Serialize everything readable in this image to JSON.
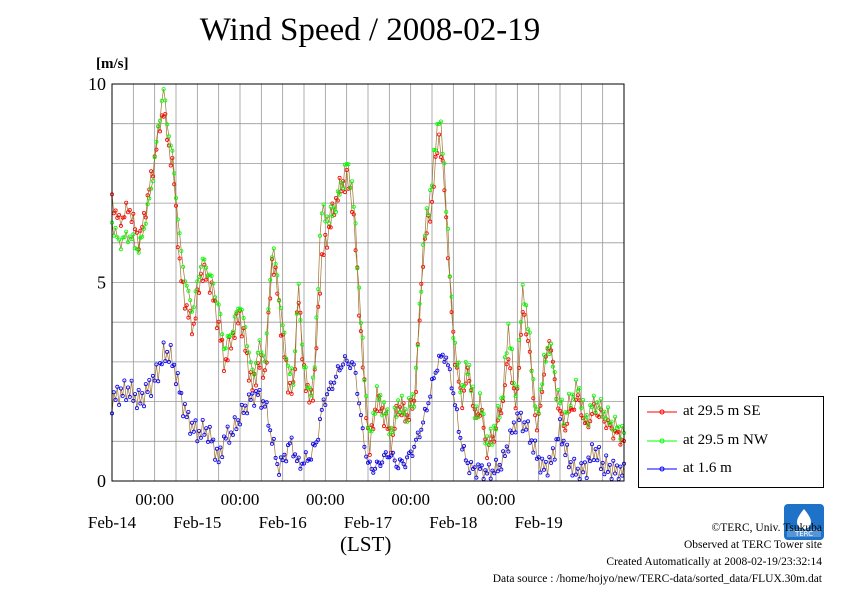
{
  "title": "Wind Speed / 2008-02-19",
  "unit_label": "[m/s]",
  "xunit_label": "(LST)",
  "credits": {
    "line1": "©TERC, Univ. Tsukuba",
    "line2": "Observed at TERC Tower site",
    "line3": "Created Automatically at 2008-02-19/23:32:14",
    "line4": "Data source : /home/hojyo/new/TERC-data/sorted_data/FLUX.30m.dat"
  },
  "logo_text": "TERC",
  "colors": {
    "se": "#ff0000",
    "nw": "#00ff00",
    "low": "#0000ff",
    "line": "#a07030",
    "grid": "#999999"
  },
  "chart_data": {
    "type": "line",
    "x_tick_labels": [
      "00:00",
      "00:00",
      "00:00",
      "00:00",
      "00:00"
    ],
    "date_labels": [
      "Feb-14",
      "Feb-15",
      "Feb-16",
      "Feb-17",
      "Feb-18",
      "Feb-19"
    ],
    "xlim_days": [
      13.5,
      19.5
    ],
    "ylim": [
      0,
      10
    ],
    "y_ticks": [
      0,
      5,
      10
    ],
    "y_minor_step": 1,
    "grid": true,
    "legend_position": "lower-right-outside",
    "series": [
      {
        "name": "at 29.5 m SE",
        "color": "#ff0000",
        "keypoints": [
          [
            13.5,
            7.1
          ],
          [
            13.58,
            6.5
          ],
          [
            13.7,
            6.9
          ],
          [
            13.82,
            6.0
          ],
          [
            13.95,
            7.5
          ],
          [
            14.05,
            8.8
          ],
          [
            14.1,
            9.4
          ],
          [
            14.15,
            8.6
          ],
          [
            14.22,
            7.8
          ],
          [
            14.3,
            5.2
          ],
          [
            14.38,
            4.3
          ],
          [
            14.45,
            3.8
          ],
          [
            14.55,
            5.3
          ],
          [
            14.65,
            5.0
          ],
          [
            14.75,
            3.9
          ],
          [
            14.82,
            2.9
          ],
          [
            14.92,
            3.7
          ],
          [
            15.0,
            4.2
          ],
          [
            15.08,
            3.1
          ],
          [
            15.15,
            2.3
          ],
          [
            15.22,
            3.0
          ],
          [
            15.3,
            2.7
          ],
          [
            15.38,
            5.7
          ],
          [
            15.45,
            4.6
          ],
          [
            15.5,
            3.5
          ],
          [
            15.57,
            2.4
          ],
          [
            15.63,
            2.2
          ],
          [
            15.68,
            4.9
          ],
          [
            15.73,
            3.2
          ],
          [
            15.8,
            2.0
          ],
          [
            15.87,
            2.4
          ],
          [
            15.95,
            5.5
          ],
          [
            16.05,
            6.4
          ],
          [
            16.15,
            7.3
          ],
          [
            16.25,
            7.6
          ],
          [
            16.32,
            7.0
          ],
          [
            16.38,
            5.0
          ],
          [
            16.45,
            2.5
          ],
          [
            16.52,
            0.8
          ],
          [
            16.6,
            2.0
          ],
          [
            16.7,
            1.6
          ],
          [
            16.78,
            0.9
          ],
          [
            16.85,
            1.9
          ],
          [
            16.95,
            1.6
          ],
          [
            17.05,
            2.0
          ],
          [
            17.15,
            5.8
          ],
          [
            17.25,
            7.0
          ],
          [
            17.33,
            8.8
          ],
          [
            17.4,
            7.3
          ],
          [
            17.47,
            4.5
          ],
          [
            17.53,
            2.9
          ],
          [
            17.6,
            2.0
          ],
          [
            17.68,
            2.8
          ],
          [
            17.75,
            1.6
          ],
          [
            17.82,
            1.8
          ],
          [
            17.9,
            0.7
          ],
          [
            18.0,
            1.3
          ],
          [
            18.08,
            2.0
          ],
          [
            18.15,
            3.2
          ],
          [
            18.23,
            1.8
          ],
          [
            18.32,
            4.4
          ],
          [
            18.4,
            3.1
          ],
          [
            18.48,
            1.2
          ],
          [
            18.55,
            2.5
          ],
          [
            18.63,
            3.7
          ],
          [
            18.7,
            2.2
          ],
          [
            18.8,
            1.3
          ],
          [
            18.88,
            1.8
          ],
          [
            18.97,
            2.1
          ],
          [
            19.05,
            1.3
          ],
          [
            19.15,
            1.8
          ],
          [
            19.25,
            1.6
          ],
          [
            19.35,
            1.3
          ],
          [
            19.45,
            1.1
          ],
          [
            19.5,
            1.0
          ]
        ]
      },
      {
        "name": "at 29.5 m NW",
        "color": "#00ff00",
        "keypoints": [
          [
            13.5,
            6.5
          ],
          [
            13.58,
            6.0
          ],
          [
            13.7,
            6.2
          ],
          [
            13.82,
            5.8
          ],
          [
            13.95,
            7.2
          ],
          [
            14.05,
            9.0
          ],
          [
            14.1,
            9.9
          ],
          [
            14.15,
            9.0
          ],
          [
            14.22,
            8.0
          ],
          [
            14.3,
            5.9
          ],
          [
            14.38,
            4.8
          ],
          [
            14.45,
            4.3
          ],
          [
            14.55,
            5.6
          ],
          [
            14.65,
            5.2
          ],
          [
            14.75,
            4.4
          ],
          [
            14.82,
            3.3
          ],
          [
            14.92,
            3.9
          ],
          [
            15.0,
            4.5
          ],
          [
            15.08,
            3.6
          ],
          [
            15.15,
            2.6
          ],
          [
            15.22,
            3.4
          ],
          [
            15.3,
            3.1
          ],
          [
            15.38,
            6.0
          ],
          [
            15.45,
            4.9
          ],
          [
            15.5,
            3.9
          ],
          [
            15.57,
            2.8
          ],
          [
            15.63,
            2.5
          ],
          [
            15.68,
            5.0
          ],
          [
            15.73,
            3.4
          ],
          [
            15.8,
            2.2
          ],
          [
            15.87,
            2.6
          ],
          [
            15.95,
            6.8
          ],
          [
            16.05,
            6.6
          ],
          [
            16.15,
            7.1
          ],
          [
            16.25,
            8.0
          ],
          [
            16.32,
            7.4
          ],
          [
            16.38,
            5.4
          ],
          [
            16.45,
            2.9
          ],
          [
            16.52,
            1.0
          ],
          [
            16.6,
            2.2
          ],
          [
            16.7,
            1.8
          ],
          [
            16.78,
            1.2
          ],
          [
            16.85,
            2.0
          ],
          [
            16.95,
            1.7
          ],
          [
            17.05,
            2.2
          ],
          [
            17.15,
            6.0
          ],
          [
            17.25,
            7.6
          ],
          [
            17.33,
            9.3
          ],
          [
            17.4,
            7.8
          ],
          [
            17.47,
            4.7
          ],
          [
            17.53,
            3.1
          ],
          [
            17.6,
            2.3
          ],
          [
            17.68,
            3.0
          ],
          [
            17.75,
            1.7
          ],
          [
            17.82,
            2.0
          ],
          [
            17.9,
            0.9
          ],
          [
            18.0,
            1.4
          ],
          [
            18.08,
            2.2
          ],
          [
            18.15,
            4.0
          ],
          [
            18.23,
            2.0
          ],
          [
            18.32,
            5.0
          ],
          [
            18.4,
            3.4
          ],
          [
            18.48,
            1.5
          ],
          [
            18.55,
            2.8
          ],
          [
            18.63,
            3.5
          ],
          [
            18.7,
            2.4
          ],
          [
            18.8,
            1.6
          ],
          [
            18.88,
            2.1
          ],
          [
            18.97,
            2.4
          ],
          [
            19.05,
            1.5
          ],
          [
            19.15,
            2.0
          ],
          [
            19.25,
            1.8
          ],
          [
            19.35,
            1.5
          ],
          [
            19.45,
            1.3
          ],
          [
            19.5,
            1.2
          ]
        ]
      },
      {
        "name": "at 1.6 m",
        "color": "#0000ff",
        "keypoints": [
          [
            13.5,
            2.0
          ],
          [
            13.58,
            2.2
          ],
          [
            13.7,
            2.3
          ],
          [
            13.82,
            2.0
          ],
          [
            13.95,
            2.4
          ],
          [
            14.05,
            2.8
          ],
          [
            14.1,
            3.2
          ],
          [
            14.18,
            3.2
          ],
          [
            14.25,
            2.7
          ],
          [
            14.32,
            2.0
          ],
          [
            14.4,
            1.5
          ],
          [
            14.5,
            1.2
          ],
          [
            14.6,
            1.3
          ],
          [
            14.68,
            1.0
          ],
          [
            14.75,
            0.5
          ],
          [
            14.82,
            1.1
          ],
          [
            14.9,
            1.2
          ],
          [
            15.0,
            1.6
          ],
          [
            15.1,
            2.0
          ],
          [
            15.2,
            2.2
          ],
          [
            15.3,
            1.9
          ],
          [
            15.38,
            1.0
          ],
          [
            15.45,
            0.3
          ],
          [
            15.52,
            0.6
          ],
          [
            15.6,
            1.0
          ],
          [
            15.68,
            0.4
          ],
          [
            15.75,
            0.5
          ],
          [
            15.82,
            0.6
          ],
          [
            15.9,
            1.0
          ],
          [
            15.98,
            2.0
          ],
          [
            16.05,
            2.3
          ],
          [
            16.12,
            2.6
          ],
          [
            16.2,
            3.0
          ],
          [
            16.28,
            3.0
          ],
          [
            16.35,
            2.8
          ],
          [
            16.42,
            1.5
          ],
          [
            16.5,
            0.4
          ],
          [
            16.58,
            0.3
          ],
          [
            16.65,
            0.5
          ],
          [
            16.75,
            0.7
          ],
          [
            16.85,
            0.4
          ],
          [
            16.95,
            0.5
          ],
          [
            17.05,
            0.9
          ],
          [
            17.15,
            1.5
          ],
          [
            17.25,
            2.4
          ],
          [
            17.32,
            3.0
          ],
          [
            17.4,
            3.2
          ],
          [
            17.48,
            2.5
          ],
          [
            17.55,
            1.5
          ],
          [
            17.62,
            0.7
          ],
          [
            17.7,
            0.3
          ],
          [
            17.8,
            0.3
          ],
          [
            17.9,
            0.2
          ],
          [
            18.0,
            0.3
          ],
          [
            18.08,
            0.5
          ],
          [
            18.15,
            1.0
          ],
          [
            18.25,
            1.6
          ],
          [
            18.35,
            1.4
          ],
          [
            18.45,
            0.8
          ],
          [
            18.55,
            0.3
          ],
          [
            18.65,
            0.5
          ],
          [
            18.75,
            1.3
          ],
          [
            18.85,
            0.5
          ],
          [
            18.95,
            0.2
          ],
          [
            19.05,
            0.3
          ],
          [
            19.15,
            0.8
          ],
          [
            19.25,
            0.4
          ],
          [
            19.35,
            0.3
          ],
          [
            19.45,
            0.2
          ],
          [
            19.5,
            0.2
          ]
        ]
      }
    ]
  }
}
